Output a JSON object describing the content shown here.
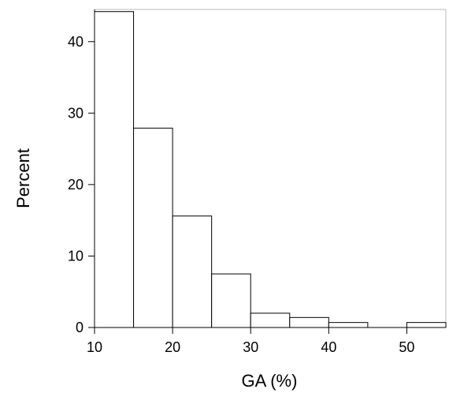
{
  "chart_data": {
    "type": "bar",
    "subtype": "histogram",
    "xlabel": "GA (%)",
    "ylabel": "Percent",
    "xlim": [
      10,
      55
    ],
    "ylim": [
      0,
      44.5
    ],
    "xticks": [
      10,
      20,
      30,
      40,
      50
    ],
    "yticks": [
      0,
      10,
      20,
      30,
      40
    ],
    "bins": [
      {
        "x0": 10,
        "x1": 15,
        "value": 44.2
      },
      {
        "x0": 15,
        "x1": 20,
        "value": 27.9
      },
      {
        "x0": 20,
        "x1": 25,
        "value": 15.6
      },
      {
        "x0": 25,
        "x1": 30,
        "value": 7.5
      },
      {
        "x0": 30,
        "x1": 35,
        "value": 2.0
      },
      {
        "x0": 35,
        "x1": 40,
        "value": 1.4
      },
      {
        "x0": 40,
        "x1": 45,
        "value": 0.7
      },
      {
        "x0": 45,
        "x1": 50,
        "value": 0
      },
      {
        "x0": 50,
        "x1": 55,
        "value": 0.7
      }
    ],
    "grid": false,
    "bar_fill": "#ffffff",
    "bar_stroke": "#000000"
  }
}
